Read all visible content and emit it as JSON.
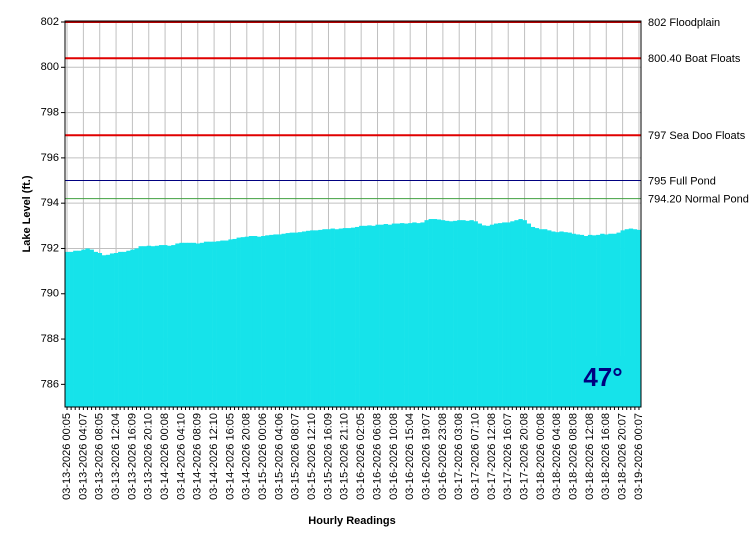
{
  "chart_data": {
    "type": "bar",
    "y_label": "Lake Level (ft.)",
    "x_label": "Hourly Readings",
    "annotation": "47°",
    "color": "#16e3ea",
    "grid": true,
    "ylim": [
      785,
      802
    ],
    "yticks": [
      786,
      788,
      790,
      792,
      794,
      796,
      798,
      800,
      802
    ],
    "reference_lines": [
      {
        "value": 802,
        "label": "802 Floodplain",
        "color": "#b00000"
      },
      {
        "value": 800.4,
        "label": "800.40 Boat Floats",
        "color": "#e00000"
      },
      {
        "value": 797,
        "label": "797 Sea Doo Floats",
        "color": "#e00000"
      },
      {
        "value": 795,
        "label": "795 Full Pond",
        "color": "#000080"
      },
      {
        "value": 794.2,
        "label": "794.20 Normal Pond",
        "color": "#40a040"
      }
    ],
    "categories": [
      "03-13-2026 00:05",
      null,
      null,
      null,
      "03-13-2026 04:07",
      null,
      null,
      null,
      "03-13-2026 08:05",
      null,
      null,
      null,
      "03-13-2026 12:04",
      null,
      null,
      null,
      "03-13-2026 16:09",
      null,
      null,
      null,
      "03-13-2026 20:10",
      null,
      null,
      null,
      "03-14-2026 00:08",
      null,
      null,
      null,
      "03-14-2026 04:10",
      null,
      null,
      null,
      "03-14-2026 08:09",
      null,
      null,
      null,
      "03-14-2026 12:10",
      null,
      null,
      null,
      "03-14-2026 16:05",
      null,
      null,
      null,
      "03-14-2026 20:08",
      null,
      null,
      null,
      "03-15-2026 00:06",
      null,
      null,
      null,
      "03-15-2026 04:06",
      null,
      null,
      null,
      "03-15-2026 08:07",
      null,
      null,
      null,
      "03-15-2026 12:10",
      null,
      null,
      null,
      "03-15-2026 16:09",
      null,
      null,
      null,
      "03-15-2026 21:10",
      null,
      null,
      null,
      "03-16-2026 02:05",
      null,
      null,
      null,
      "03-16-2026 06:08",
      null,
      null,
      null,
      "03-16-2026 10:08",
      null,
      null,
      null,
      "03-16-2026 15:04",
      null,
      null,
      null,
      "03-16-2026 19:07",
      null,
      null,
      null,
      "03-16-2026 23:08",
      null,
      null,
      null,
      "03-17-2026 03:08",
      null,
      null,
      null,
      "03-17-2026 07:10",
      null,
      null,
      null,
      "03-17-2026 12:08",
      null,
      null,
      null,
      "03-17-2026 16:07",
      null,
      null,
      null,
      "03-17-2026 20:08",
      null,
      null,
      null,
      "03-18-2026 00:08",
      null,
      null,
      null,
      "03-18-2026 04:08",
      null,
      null,
      null,
      "03-18-2026 08:08",
      null,
      null,
      null,
      "03-18-2026 12:08",
      null,
      null,
      null,
      "03-18-2026 16:08",
      null,
      null,
      null,
      "03-18-2026 20:07",
      null,
      null,
      null,
      "03-19-2026 00:07"
    ],
    "values": [
      791.85,
      791.85,
      791.9,
      791.9,
      791.95,
      792.0,
      791.95,
      791.85,
      791.8,
      791.7,
      791.72,
      791.78,
      791.8,
      791.85,
      791.85,
      791.9,
      791.95,
      792.0,
      792.1,
      792.1,
      792.12,
      792.1,
      792.12,
      792.15,
      792.15,
      792.12,
      792.15,
      792.22,
      792.25,
      792.25,
      792.25,
      792.25,
      792.22,
      792.25,
      792.3,
      792.3,
      792.3,
      792.32,
      792.35,
      792.35,
      792.4,
      792.42,
      792.48,
      792.5,
      792.52,
      792.55,
      792.55,
      792.52,
      792.55,
      792.58,
      792.6,
      792.62,
      792.62,
      792.65,
      792.68,
      792.7,
      792.7,
      792.72,
      792.75,
      792.78,
      792.8,
      792.8,
      792.82,
      792.85,
      792.85,
      792.88,
      792.85,
      792.88,
      792.9,
      792.9,
      792.92,
      792.95,
      793.0,
      793.0,
      793.02,
      793.0,
      793.05,
      793.05,
      793.08,
      793.05,
      793.1,
      793.1,
      793.12,
      793.1,
      793.12,
      793.15,
      793.12,
      793.15,
      793.25,
      793.3,
      793.3,
      793.28,
      793.25,
      793.22,
      793.2,
      793.22,
      793.25,
      793.25,
      793.22,
      793.25,
      793.2,
      793.1,
      793.02,
      793.0,
      793.05,
      793.1,
      793.12,
      793.15,
      793.15,
      793.2,
      793.25,
      793.3,
      793.25,
      793.1,
      792.95,
      792.9,
      792.85,
      792.85,
      792.8,
      792.75,
      792.72,
      792.75,
      792.72,
      792.7,
      792.65,
      792.62,
      792.6,
      792.55,
      792.6,
      792.58,
      792.6,
      792.65,
      792.62,
      792.65,
      792.65,
      792.7,
      792.8,
      792.85,
      792.88,
      792.85,
      792.82
    ]
  }
}
